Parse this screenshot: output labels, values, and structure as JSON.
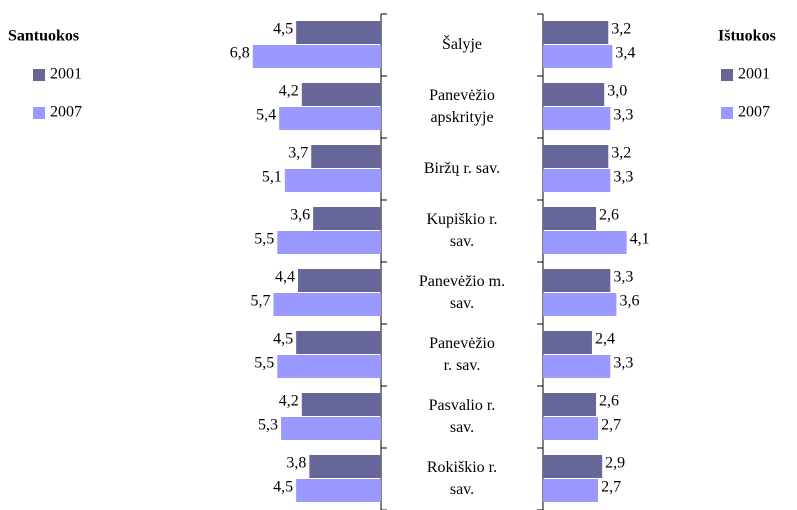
{
  "chart_data": [
    {
      "type": "bar",
      "orientation": "horizontal",
      "x_reversed": true,
      "title": "Santuokos",
      "categories": [
        "Šalyje",
        "Panevėžio\napskrityje",
        "Biržų r. sav.",
        "Kupiškio r.\nsav.",
        "Panevėžio m.\nsav.",
        "Panevėžio\nr. sav.",
        "Pasvalio r.\nsav.",
        "Rokiškio r.\nsav."
      ],
      "xlim": [
        0,
        7
      ],
      "series": [
        {
          "name": "2001",
          "color": "#666699",
          "values": [
            4.5,
            4.2,
            3.7,
            3.6,
            4.4,
            4.5,
            4.2,
            3.8
          ],
          "value_labels": [
            "4,5",
            "4,2",
            "3,7",
            "3,6",
            "4,4",
            "4,5",
            "4,2",
            "3,8"
          ]
        },
        {
          "name": "2007",
          "color": "#9999ff",
          "values": [
            6.8,
            5.4,
            5.1,
            5.5,
            5.7,
            5.5,
            5.3,
            4.5
          ],
          "value_labels": [
            "6,8",
            "5,4",
            "5,1",
            "5,5",
            "5,7",
            "5,5",
            "5,3",
            "4,5"
          ]
        }
      ]
    },
    {
      "type": "bar",
      "orientation": "horizontal",
      "x_reversed": false,
      "title": "Ištuokos",
      "xlim": [
        0,
        5
      ],
      "series": [
        {
          "name": "2001",
          "color": "#666699",
          "values": [
            3.2,
            3.0,
            3.2,
            2.6,
            3.3,
            2.4,
            2.6,
            2.9
          ],
          "value_labels": [
            "3,2",
            "3,0",
            "3,2",
            "2,6",
            "3,3",
            "2,4",
            "2,6",
            "2,9"
          ]
        },
        {
          "name": "2007",
          "color": "#9999ff",
          "values": [
            3.4,
            3.3,
            3.3,
            4.1,
            3.6,
            3.3,
            2.7,
            2.7
          ],
          "value_labels": [
            "3,4",
            "3,3",
            "3,3",
            "4,1",
            "3,6",
            "3,3",
            "2,7",
            "2,7"
          ]
        }
      ]
    }
  ]
}
